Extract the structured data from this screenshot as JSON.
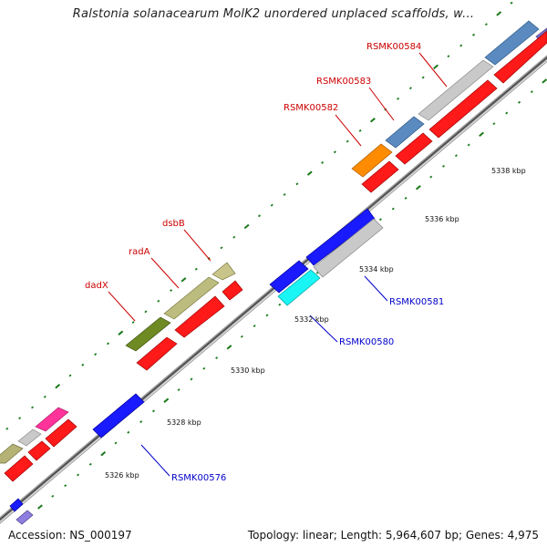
{
  "title": "Ralstonia solanacearum MolK2 unordered unplaced scaffolds, w...",
  "footer": {
    "accession": "Accession: NS_000197",
    "topology": "Topology: linear; Length: 5,964,607 bp; Genes: 4,975"
  },
  "colors": {
    "backbone": "#888888",
    "tick": "#1a7a1a",
    "forward_label": "#cc0000",
    "reverse_label": "#0000cc"
  },
  "tick_labels": [
    "5326 kbp",
    "5328 kbp",
    "5330 kbp",
    "5332 kbp",
    "5334 kbp",
    "5336 kbp",
    "5338 kbp"
  ],
  "gene_labels": [
    {
      "id": "dadx",
      "text": "dadX",
      "strand": "forward"
    },
    {
      "id": "rada",
      "text": "radA",
      "strand": "forward"
    },
    {
      "id": "dsbb",
      "text": "dsbB",
      "strand": "forward"
    },
    {
      "id": "rsmk00582",
      "text": "RSMK00582",
      "strand": "forward"
    },
    {
      "id": "rsmk00583",
      "text": "RSMK00583",
      "strand": "forward"
    },
    {
      "id": "rsmk00584",
      "text": "RSMK00584",
      "strand": "forward"
    },
    {
      "id": "rsmk00576",
      "text": "RSMK00576",
      "strand": "reverse"
    },
    {
      "id": "rsmk00580",
      "text": "RSMK00580",
      "strand": "reverse"
    },
    {
      "id": "rsmk00581",
      "text": "RSMK00581",
      "strand": "reverse"
    }
  ]
}
